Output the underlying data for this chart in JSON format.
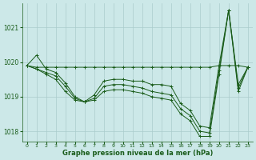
{
  "title": "Graphe pression niveau de la mer (hPa)",
  "bg_color": "#cce8e8",
  "grid_color": "#aacccc",
  "line_color": "#1a5c1a",
  "xlim": [
    -0.5,
    23.5
  ],
  "ylim": [
    1017.7,
    1021.7
  ],
  "yticks": [
    1018,
    1019,
    1020,
    1021
  ],
  "xticks": [
    0,
    1,
    2,
    3,
    4,
    5,
    6,
    7,
    8,
    9,
    10,
    11,
    12,
    13,
    14,
    15,
    16,
    17,
    18,
    19,
    20,
    21,
    22,
    23
  ],
  "lines": [
    [
      1019.9,
      1019.85,
      1019.85,
      1019.85,
      1019.85,
      1019.85,
      1019.85,
      1019.85,
      1019.85,
      1019.85,
      1019.85,
      1019.85,
      1019.85,
      1019.85,
      1019.85,
      1019.85,
      1019.85,
      1019.85,
      1019.85,
      1019.85,
      1019.9,
      1019.9,
      1019.9,
      1019.85
    ],
    [
      1019.9,
      1020.2,
      1019.8,
      1019.7,
      1019.4,
      1019.0,
      1018.85,
      1019.05,
      1019.45,
      1019.5,
      1019.5,
      1019.45,
      1019.45,
      1019.35,
      1019.35,
      1019.3,
      1018.8,
      1018.6,
      1018.15,
      1018.1,
      1019.9,
      1021.5,
      1019.35,
      1019.85
    ],
    [
      1019.9,
      1019.8,
      1019.7,
      1019.6,
      1019.3,
      1018.95,
      1018.85,
      1018.95,
      1019.3,
      1019.35,
      1019.35,
      1019.3,
      1019.25,
      1019.15,
      1019.1,
      1019.05,
      1018.65,
      1018.45,
      1018.0,
      1017.95,
      1019.75,
      1021.5,
      1019.25,
      1019.85
    ],
    [
      1019.9,
      1019.8,
      1019.65,
      1019.5,
      1019.15,
      1018.9,
      1018.85,
      1018.9,
      1019.15,
      1019.2,
      1019.2,
      1019.15,
      1019.1,
      1019.0,
      1018.95,
      1018.9,
      1018.5,
      1018.3,
      1017.85,
      1017.85,
      1019.65,
      1021.5,
      1019.15,
      1019.85
    ]
  ]
}
